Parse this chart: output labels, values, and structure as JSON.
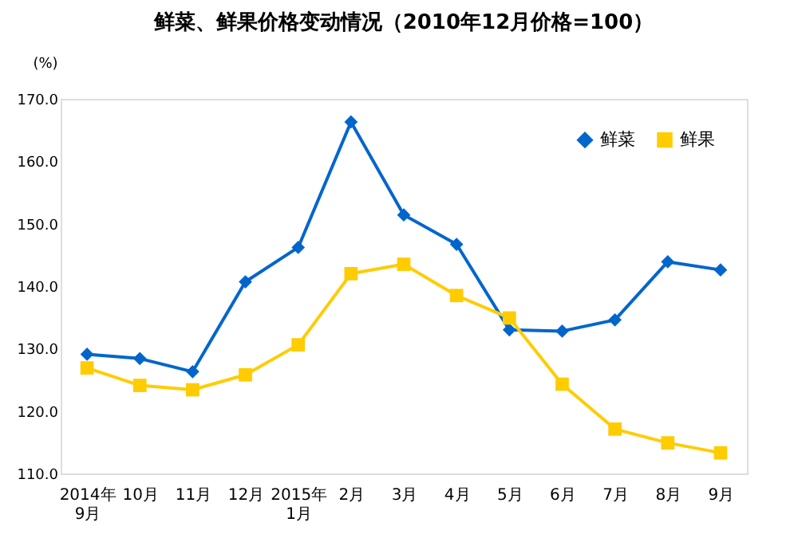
{
  "chart_data": {
    "type": "line",
    "title": "鲜菜、鲜果价格变动情况（2010年12月价格=100）",
    "ylabel": "(%)",
    "categories": [
      "2014年\n9月",
      "10月",
      "11月",
      "12月",
      "2015年\n1月",
      "2月",
      "3月",
      "4月",
      "5月",
      "6月",
      "7月",
      "8月",
      "9月"
    ],
    "series": [
      {
        "name": "鲜菜",
        "color": "#0066cc",
        "marker": "diamond",
        "values": [
          129.1,
          128.4,
          126.3,
          140.7,
          146.2,
          166.3,
          151.4,
          146.7,
          133.0,
          132.8,
          134.6,
          143.9,
          142.6
        ]
      },
      {
        "name": "鲜果",
        "color": "#ffcc00",
        "marker": "square",
        "values": [
          126.9,
          124.1,
          123.4,
          125.8,
          130.6,
          142.0,
          143.5,
          138.5,
          134.9,
          124.3,
          117.1,
          114.9,
          113.3
        ]
      }
    ],
    "ylim": [
      110,
      170
    ],
    "yticks": [
      {
        "value": 110,
        "label": "110.0"
      },
      {
        "value": 120,
        "label": "120.0"
      },
      {
        "value": 130,
        "label": "130.0"
      },
      {
        "value": 140,
        "label": "140.0"
      },
      {
        "value": 150,
        "label": "150.0"
      },
      {
        "value": 160,
        "label": "160.0"
      },
      {
        "value": 170,
        "label": "170.0"
      }
    ],
    "grid": false,
    "legend": "top right",
    "line_style": "solid"
  }
}
